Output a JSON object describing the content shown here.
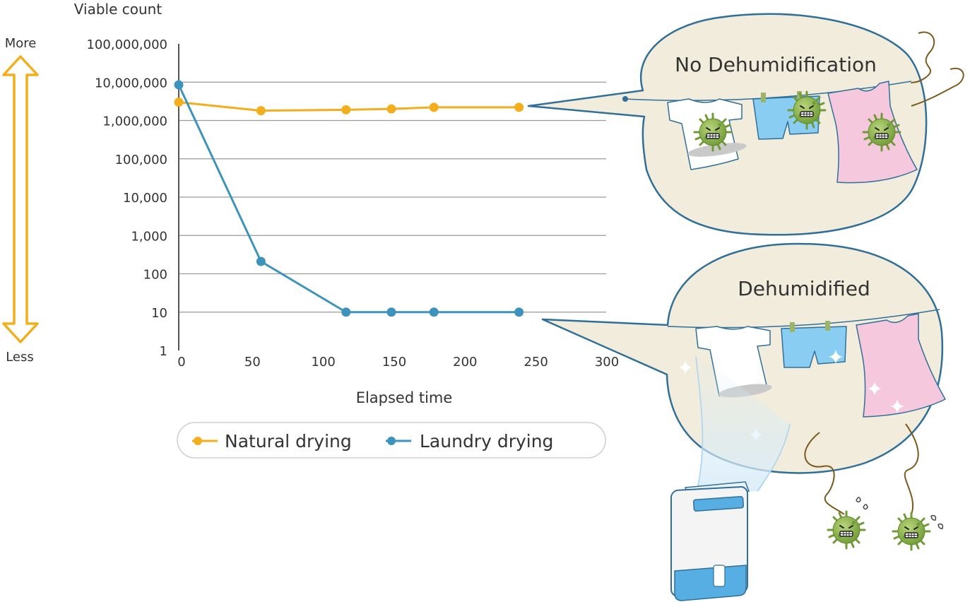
{
  "colors": {
    "natural": "#F2AE1C",
    "laundry": "#3E93BD",
    "grid": "#9a9a9a",
    "bubble_fill": "#F1ECDC",
    "bubble_stroke": "#2F6F98",
    "arrow": "#F2AE1C",
    "germ": "#8FB24F",
    "shirt_blue": "#8ACDF2",
    "dress_pink": "#F5C8DE"
  },
  "indicator": {
    "more_label": "More",
    "less_label": "Less"
  },
  "bubbles": {
    "top": {
      "title": "No Dehumidification"
    },
    "bottom": {
      "title": "Dehumidified"
    }
  },
  "chart_data": {
    "type": "line",
    "ylabel": "Viable count",
    "xlabel": "Elapsed time",
    "y_scale": "log",
    "ylim": [
      1,
      100000000
    ],
    "xlim": [
      0,
      300
    ],
    "x_ticks": [
      "0",
      "50",
      "100",
      "150",
      "200",
      "250",
      "300"
    ],
    "y_ticks": [
      {
        "value": 100000000,
        "label": "100,000,000"
      },
      {
        "value": 10000000,
        "label": "10,000,000"
      },
      {
        "value": 1000000,
        "label": "1,000,000"
      },
      {
        "value": 100000,
        "label": "100,000"
      },
      {
        "value": 10000,
        "label": "10,000"
      },
      {
        "value": 1000,
        "label": "1,000"
      },
      {
        "value": 100,
        "label": "100"
      },
      {
        "value": 10,
        "label": "10"
      },
      {
        "value": 1,
        "label": "1"
      }
    ],
    "grid": true,
    "legend_position": "bottom",
    "series": [
      {
        "name": "Natural drying",
        "color_key": "natural",
        "x": [
          0,
          58,
          118,
          150,
          180,
          240
        ],
        "y": [
          3000000,
          1800000,
          1900000,
          2000000,
          2200000,
          2200000
        ]
      },
      {
        "name": "Laundry drying",
        "color_key": "laundry",
        "x": [
          0,
          58,
          118,
          150,
          180,
          240
        ],
        "y": [
          8500000,
          210,
          10,
          10,
          10,
          10
        ]
      }
    ]
  }
}
